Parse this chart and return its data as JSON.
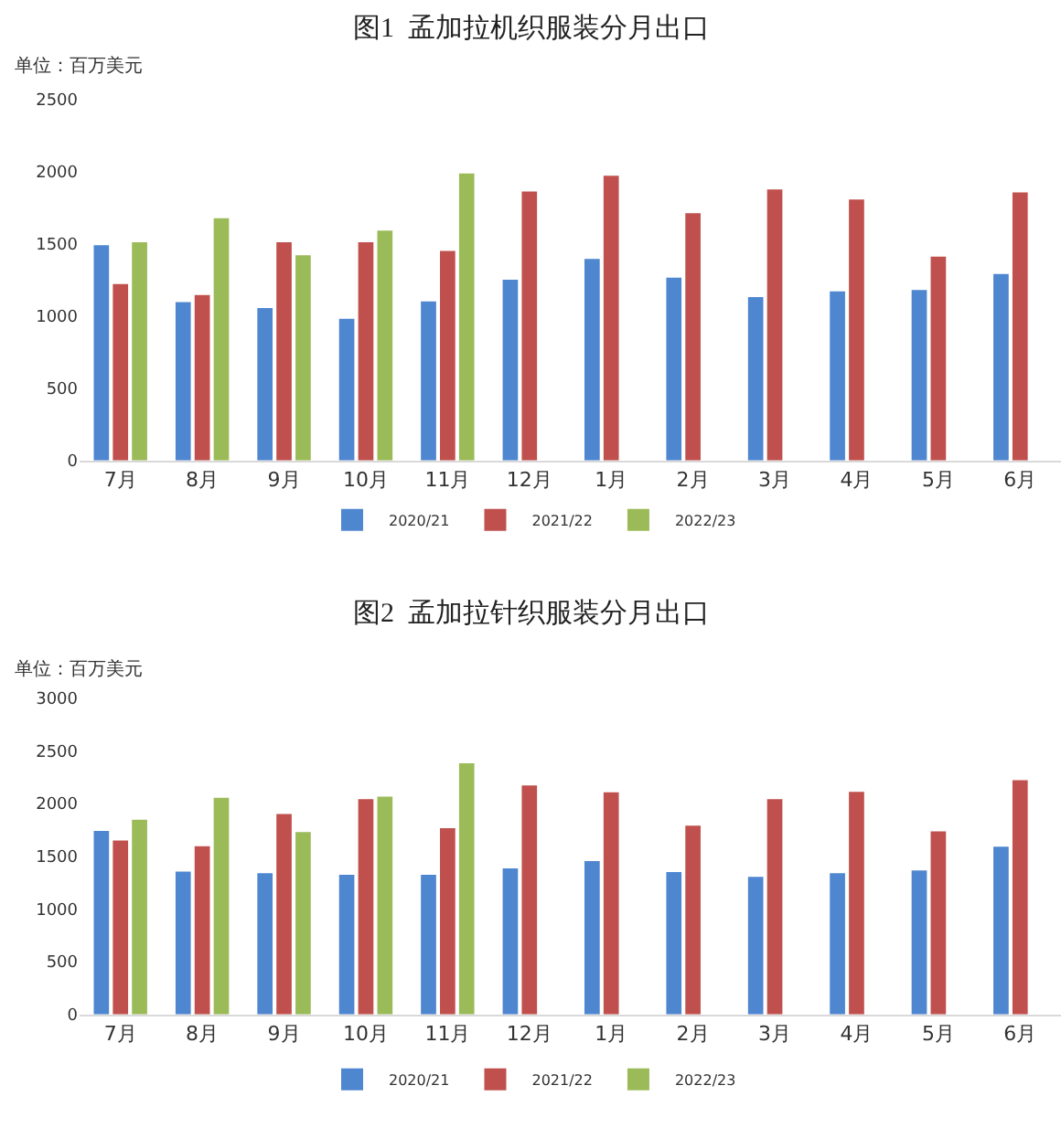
{
  "chart_data": [
    {
      "type": "bar",
      "title": "图1  孟加拉机织服装分月出口",
      "ylabel": "单位：百万美元",
      "categories": [
        "7月",
        "8月",
        "9月",
        "10月",
        "11月",
        "12月",
        "1月",
        "2月",
        "3月",
        "4月",
        "5月",
        "6月"
      ],
      "series": [
        {
          "name": "2020/21",
          "color": "#4f86d0",
          "values": [
            1490,
            1095,
            1055,
            980,
            1100,
            1250,
            1395,
            1265,
            1130,
            1170,
            1180,
            1290
          ]
        },
        {
          "name": "2021/22",
          "color": "#c0504d",
          "values": [
            1220,
            1145,
            1510,
            1510,
            1450,
            1860,
            1970,
            1710,
            1875,
            1805,
            1410,
            1855
          ]
        },
        {
          "name": "2022/23",
          "color": "#9bbb59",
          "values": [
            1510,
            1675,
            1420,
            1590,
            1985,
            null,
            null,
            null,
            null,
            null,
            null,
            null
          ]
        }
      ],
      "ylim": [
        0,
        2500
      ],
      "yticks": [
        0,
        500,
        1000,
        1500,
        2000,
        2500
      ],
      "grid": false,
      "legend": "bottom"
    },
    {
      "type": "bar",
      "title": "图2  孟加拉针织服装分月出口",
      "ylabel": "单位：百万美元",
      "categories": [
        "7月",
        "8月",
        "9月",
        "10月",
        "11月",
        "12月",
        "1月",
        "2月",
        "3月",
        "4月",
        "5月",
        "6月"
      ],
      "series": [
        {
          "name": "2020/21",
          "color": "#4f86d0",
          "values": [
            1740,
            1355,
            1340,
            1325,
            1325,
            1385,
            1455,
            1350,
            1305,
            1340,
            1365,
            1590
          ]
        },
        {
          "name": "2021/22",
          "color": "#c0504d",
          "values": [
            1650,
            1595,
            1900,
            2040,
            1765,
            2170,
            2105,
            1790,
            2040,
            2110,
            1735,
            2220
          ]
        },
        {
          "name": "2022/23",
          "color": "#9bbb59",
          "values": [
            1845,
            2055,
            1730,
            2065,
            2380,
            null,
            null,
            null,
            null,
            null,
            null,
            null
          ]
        }
      ],
      "ylim": [
        0,
        3000
      ],
      "yticks": [
        0,
        500,
        1000,
        1500,
        2000,
        2500,
        3000
      ],
      "grid": false,
      "legend": "bottom"
    }
  ]
}
